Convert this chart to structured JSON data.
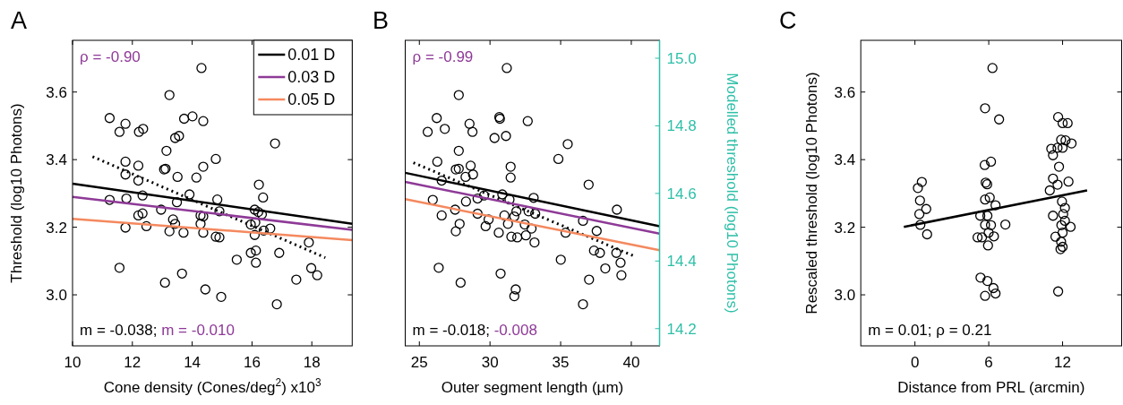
{
  "chart_data": [
    {
      "type": "scatter",
      "title": "A",
      "xlabel": "Cone density (Cones/deg$^{2}$) x10$^{3}$",
      "ylabel": "Threshold (log10 Photons)",
      "xlim": [
        10,
        19.35
      ],
      "xticks": [
        10,
        12,
        14,
        16,
        18
      ],
      "ylim": [
        2.849,
        3.753
      ],
      "yticks": [
        {
          "value": 3,
          "label": "3.0"
        },
        {
          "value": 3.2,
          "label": "3.2"
        },
        {
          "value": 3.4,
          "label": "3.4"
        },
        {
          "value": 3.6,
          "label": "3.6"
        }
      ],
      "grid": false,
      "legend": "top right",
      "annotations": [
        "ρ = -0.90",
        "m = -0.038;",
        "m = -0.010"
      ],
      "series": [
        {
          "type": "scatter",
          "marker": "circle",
          "color": "#000000",
          "x": [
            14.31,
            13.24,
            11.24,
            11.77,
            11.57,
            12.22,
            12.36,
            13.73,
            14.01,
            14.37,
            13.43,
            13.56,
            13.14,
            16.77,
            11.77,
            12.2,
            14.79,
            14.37,
            13.06,
            13.11,
            11.77,
            12.2,
            13.51,
            14.14,
            16.23,
            11.24,
            11.8,
            12.34,
            13.91,
            13.49,
            14.84,
            14.91,
            16.37,
            16.09,
            16.21,
            16.33,
            12.96,
            12.2,
            12.34,
            13.36,
            13.43,
            14.28,
            14.37,
            14.28,
            15.96,
            16.11,
            11.77,
            12.47,
            13.24,
            13.71,
            14.37,
            14.79,
            14.91,
            16.39,
            16.61,
            16.09,
            17.9,
            15.49,
            15.96,
            16.13,
            16.13,
            16.91,
            11.57,
            17.98,
            18.18,
            17.48,
            13.66,
            13.09,
            14.44,
            14.97,
            16.83
          ],
          "values": [
            3.671,
            3.591,
            3.523,
            3.506,
            3.482,
            3.482,
            3.491,
            3.521,
            3.528,
            3.514,
            3.464,
            3.47,
            3.426,
            3.448,
            3.394,
            3.382,
            3.402,
            3.379,
            3.371,
            3.373,
            3.356,
            3.338,
            3.349,
            3.347,
            3.326,
            3.281,
            3.285,
            3.294,
            3.297,
            3.274,
            3.282,
            3.247,
            3.288,
            3.252,
            3.245,
            3.238,
            3.252,
            3.235,
            3.241,
            3.223,
            3.21,
            3.235,
            3.232,
            3.21,
            3.208,
            3.214,
            3.199,
            3.203,
            3.188,
            3.184,
            3.184,
            3.172,
            3.17,
            3.19,
            3.196,
            3.177,
            3.155,
            3.104,
            3.124,
            3.131,
            3.095,
            3.124,
            3.08,
            3.079,
            3.058,
            3.045,
            3.063,
            3.036,
            3.016,
            2.994,
            2.972
          ]
        },
        {
          "type": "line",
          "color": "#000000",
          "line_style": "dotted",
          "x": [
            10.67,
            18.45
          ],
          "values": [
            3.409,
            3.11
          ]
        },
        {
          "type": "line",
          "name": "0.01 D",
          "color": "#000000",
          "x": [
            10,
            19.35
          ],
          "values": [
            3.329,
            3.21
          ]
        },
        {
          "type": "line",
          "name": "0.03 D",
          "color": "#8e3a97",
          "x": [
            10,
            19.35
          ],
          "values": [
            3.29,
            3.192
          ]
        },
        {
          "type": "line",
          "name": "0.05 D",
          "color": "#f4895f",
          "x": [
            10,
            19.35
          ],
          "values": [
            3.225,
            3.162
          ]
        }
      ]
    },
    {
      "type": "scatter",
      "title": "B",
      "xlabel": "Outer segment length (µm)",
      "y2label": "Modelled threshold (log10 Photons)",
      "xlim": [
        24,
        42
      ],
      "xticks": [
        25,
        30,
        35,
        40
      ],
      "ylim": [
        2.849,
        3.753
      ],
      "tick_labels": [
        "x",
        "y2"
      ],
      "y2lim": [
        14.149,
        15.053
      ],
      "y2ticks": [
        14.2,
        14.4,
        14.6,
        14.8,
        {
          "value": 15,
          "label": "15.0"
        }
      ],
      "grid": false,
      "annotations": [
        "ρ = -0.99",
        "m = -0.018;",
        "-0.008"
      ],
      "series": [
        {
          "type": "scatter",
          "marker": "circle",
          "color": "#000000",
          "x": [
            31.19,
            27.79,
            26.23,
            28.55,
            25.59,
            26.8,
            28.76,
            30.66,
            30.7,
            32.67,
            30.32,
            31.13,
            27.79,
            35.5,
            34.84,
            26.27,
            28.63,
            27.58,
            27.79,
            31.46,
            28.27,
            28.8,
            31.46,
            26.58,
            36.98,
            25.95,
            28.3,
            29.12,
            29.58,
            30.87,
            31.38,
            33.09,
            27.53,
            29.12,
            26.58,
            29.9,
            31.02,
            31.72,
            31.87,
            32.73,
            33.2,
            38.98,
            36.58,
            27.85,
            27.58,
            29.69,
            31.27,
            32.46,
            32.94,
            30.62,
            31.51,
            31.93,
            32.54,
            35.35,
            37.55,
            33.15,
            37.36,
            37.78,
            38.94,
            35.01,
            39.24,
            26.37,
            38.16,
            39.3,
            37.01,
            30.75,
            27.92,
            31.82,
            31.72,
            36.58
          ],
          "values": [
            3.671,
            3.591,
            3.523,
            3.506,
            3.482,
            3.491,
            3.482,
            3.526,
            3.521,
            3.514,
            3.464,
            3.47,
            3.426,
            3.446,
            3.402,
            3.394,
            3.382,
            3.371,
            3.373,
            3.379,
            3.349,
            3.356,
            3.347,
            3.338,
            3.326,
            3.281,
            3.276,
            3.285,
            3.294,
            3.297,
            3.282,
            3.287,
            3.252,
            3.24,
            3.235,
            3.223,
            3.235,
            3.232,
            3.247,
            3.247,
            3.24,
            3.252,
            3.219,
            3.21,
            3.188,
            3.203,
            3.21,
            3.208,
            3.196,
            3.184,
            3.172,
            3.17,
            3.176,
            3.184,
            3.189,
            3.155,
            3.131,
            3.124,
            3.124,
            3.104,
            3.095,
            3.08,
            3.078,
            3.058,
            3.045,
            3.063,
            3.036,
            3.016,
            2.996,
            2.972
          ]
        },
        {
          "type": "line",
          "color": "#000000",
          "line_style": "dotted",
          "x": [
            24.58,
            40.17
          ],
          "values": [
            3.391,
            3.115
          ]
        },
        {
          "type": "line",
          "color": "#000000",
          "axis": "y2",
          "x": [
            24,
            42
          ],
          "values": [
            14.661,
            14.503
          ]
        },
        {
          "type": "line",
          "color": "#8e3a97",
          "axis": "y2",
          "x": [
            24,
            42
          ],
          "values": [
            14.634,
            14.481
          ]
        },
        {
          "type": "line",
          "color": "#f4895f",
          "axis": "y2",
          "x": [
            24,
            42
          ],
          "values": [
            14.583,
            14.432
          ]
        }
      ]
    },
    {
      "type": "scatter",
      "title": "C",
      "xlabel": "Distance from PRL (arcmin)",
      "ylabel": "Rescaled threshold (log10 Photons)",
      "xlim": [
        -4.4,
        16.8
      ],
      "xticks": [
        0,
        6,
        12
      ],
      "ylim": [
        2.849,
        3.753
      ],
      "yticks": [
        {
          "value": 3,
          "label": "3.0"
        },
        {
          "value": 3.2,
          "label": "3.2"
        },
        {
          "value": 3.4,
          "label": "3.4"
        },
        {
          "value": 3.6,
          "label": "3.6"
        }
      ],
      "grid": false,
      "annotations": [
        "m = 0.01; ρ = 0.21"
      ],
      "series": [
        {
          "type": "scatter",
          "marker": "circle",
          "color": "#000000",
          "x": [
            0.56,
            0.24,
            0.41,
            0.92,
            0.36,
            0.44,
            0.99,
            6.3,
            5.7,
            6.84,
            6.18,
            5.67,
            5.75,
            5.87,
            5.7,
            6.08,
            6.55,
            5.31,
            5.89,
            5.7,
            6.18,
            7.35,
            5.09,
            5.45,
            5.99,
            6.42,
            5.94,
            5.33,
            5.89,
            6.38,
            6.55,
            5.7,
            11.64,
            12,
            12.41,
            11.88,
            12.24,
            12.73,
            11.08,
            11.59,
            12,
            11.22,
            11.71,
            11.22,
            12.48,
            11.59,
            10.96,
            11.95,
            12.19,
            12.05,
            11.22,
            12.19,
            11.9,
            12.65,
            12,
            11.42,
            11.88,
            12,
            11.83,
            11.64
          ],
          "values": [
            3.334,
            3.316,
            3.279,
            3.254,
            3.239,
            3.207,
            3.179,
            3.671,
            3.552,
            3.519,
            3.394,
            3.384,
            3.332,
            3.327,
            3.282,
            3.288,
            3.265,
            3.234,
            3.234,
            3.207,
            3.206,
            3.208,
            3.17,
            3.17,
            3.184,
            3.173,
            3.146,
            3.051,
            3.041,
            3.02,
            3.004,
            2.997,
            3.526,
            3.508,
            3.508,
            3.459,
            3.457,
            3.448,
            3.432,
            3.435,
            3.435,
            3.413,
            3.379,
            3.344,
            3.335,
            3.326,
            3.309,
            3.276,
            3.257,
            3.239,
            3.234,
            3.219,
            3.206,
            3.201,
            3.184,
            3.172,
            3.157,
            3.142,
            3.135,
            3.01
          ]
        },
        {
          "type": "line",
          "color": "#000000",
          "x": [
            -0.9,
            13.99
          ],
          "values": [
            3.201,
            3.309
          ]
        }
      ]
    }
  ]
}
